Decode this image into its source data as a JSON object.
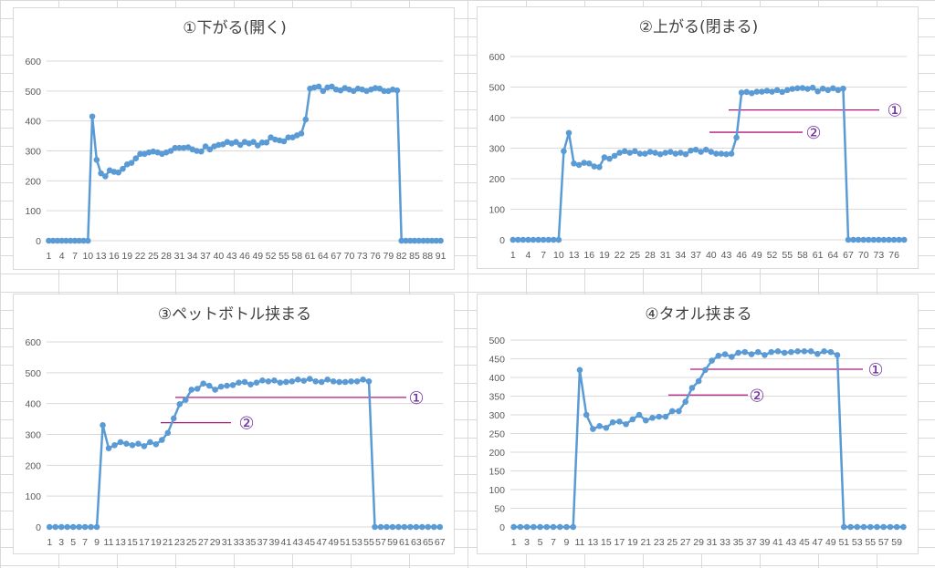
{
  "chart_data": [
    {
      "type": "line",
      "title": "①下がる(開く)",
      "ylim": [
        0,
        600
      ],
      "yticks": [
        0,
        100,
        200,
        300,
        400,
        500,
        600
      ],
      "x": [
        1,
        2,
        3,
        4,
        5,
        6,
        7,
        8,
        9,
        10,
        11,
        12,
        13,
        14,
        15,
        16,
        17,
        18,
        19,
        20,
        21,
        22,
        23,
        24,
        25,
        26,
        27,
        28,
        29,
        30,
        31,
        32,
        33,
        34,
        35,
        36,
        37,
        38,
        39,
        40,
        41,
        42,
        43,
        44,
        45,
        46,
        47,
        48,
        49,
        50,
        51,
        52,
        53,
        54,
        55,
        56,
        57,
        58,
        59,
        60,
        61,
        62,
        63,
        64,
        65,
        66,
        67,
        68,
        69,
        70,
        71,
        72,
        73,
        74,
        75,
        76,
        77,
        78,
        79,
        80,
        81,
        82,
        83,
        84,
        85,
        86,
        87,
        88,
        89,
        90,
        91
      ],
      "xtick_labels": [
        "1",
        "4",
        "7",
        "10",
        "13",
        "16",
        "19",
        "22",
        "25",
        "28",
        "31",
        "34",
        "37",
        "40",
        "43",
        "46",
        "49",
        "52",
        "55",
        "58",
        "61",
        "64",
        "67",
        "70",
        "73",
        "76",
        "79",
        "82",
        "85",
        "88",
        "91"
      ],
      "grid": true,
      "legend": "none",
      "series": [
        {
          "color": "#5b9bd5",
          "values": [
            0,
            0,
            0,
            0,
            0,
            0,
            0,
            0,
            0,
            0,
            415,
            270,
            225,
            215,
            235,
            230,
            228,
            240,
            255,
            260,
            275,
            290,
            290,
            295,
            298,
            295,
            290,
            295,
            300,
            310,
            310,
            310,
            312,
            305,
            300,
            298,
            315,
            305,
            315,
            320,
            322,
            330,
            325,
            330,
            320,
            330,
            325,
            330,
            318,
            328,
            328,
            345,
            338,
            335,
            332,
            345,
            345,
            352,
            358,
            405,
            508,
            512,
            515,
            500,
            512,
            515,
            505,
            502,
            510,
            505,
            500,
            508,
            505,
            500,
            505,
            510,
            508,
            500,
            500,
            505,
            502,
            0,
            0,
            0,
            0,
            0,
            0,
            0,
            0,
            0,
            0
          ]
        }
      ],
      "annotations": []
    },
    {
      "type": "line",
      "title": "②上がる(閉まる)",
      "ylim": [
        0,
        600
      ],
      "yticks": [
        0,
        100,
        200,
        300,
        400,
        500,
        600
      ],
      "x": [
        1,
        2,
        3,
        4,
        5,
        6,
        7,
        8,
        9,
        10,
        11,
        12,
        13,
        14,
        15,
        16,
        17,
        18,
        19,
        20,
        21,
        22,
        23,
        24,
        25,
        26,
        27,
        28,
        29,
        30,
        31,
        32,
        33,
        34,
        35,
        36,
        37,
        38,
        39,
        40,
        41,
        42,
        43,
        44,
        45,
        46,
        47,
        48,
        49,
        50,
        51,
        52,
        53,
        54,
        55,
        56,
        57,
        58,
        59,
        60,
        61,
        62,
        63,
        64,
        65,
        66,
        67,
        68,
        69,
        70,
        71,
        72,
        73,
        74,
        75,
        76,
        77,
        78
      ],
      "xtick_labels": [
        "1",
        "4",
        "7",
        "10",
        "13",
        "16",
        "19",
        "22",
        "25",
        "28",
        "31",
        "34",
        "37",
        "40",
        "43",
        "46",
        "49",
        "52",
        "55",
        "58",
        "61",
        "64",
        "67",
        "70",
        "73",
        "76"
      ],
      "grid": true,
      "legend": "none",
      "series": [
        {
          "color": "#5b9bd5",
          "values": [
            0,
            0,
            0,
            0,
            0,
            0,
            0,
            0,
            0,
            0,
            290,
            350,
            250,
            245,
            252,
            250,
            240,
            238,
            270,
            265,
            275,
            285,
            290,
            285,
            290,
            282,
            282,
            288,
            285,
            280,
            285,
            288,
            282,
            285,
            280,
            292,
            295,
            288,
            295,
            288,
            282,
            282,
            280,
            282,
            335,
            482,
            484,
            480,
            485,
            485,
            488,
            485,
            490,
            484,
            490,
            494,
            496,
            497,
            494,
            498,
            486,
            495,
            490,
            496,
            490,
            495,
            0,
            0,
            0,
            0,
            0,
            0,
            0,
            0,
            0,
            0,
            0,
            0
          ]
        }
      ],
      "annotations": [
        {
          "label": "①",
          "value": 425
        },
        {
          "label": "②",
          "value": 352
        }
      ]
    },
    {
      "type": "line",
      "title": "③ペットボトル挟まる",
      "ylim": [
        0,
        600
      ],
      "yticks": [
        0,
        100,
        200,
        300,
        400,
        500,
        600
      ],
      "x": [
        1,
        2,
        3,
        4,
        5,
        6,
        7,
        8,
        9,
        10,
        11,
        12,
        13,
        14,
        15,
        16,
        17,
        18,
        19,
        20,
        21,
        22,
        23,
        24,
        25,
        26,
        27,
        28,
        29,
        30,
        31,
        32,
        33,
        34,
        35,
        36,
        37,
        38,
        39,
        40,
        41,
        42,
        43,
        44,
        45,
        46,
        47,
        48,
        49,
        50,
        51,
        52,
        53,
        54,
        55,
        56,
        57,
        58,
        59,
        60,
        61,
        62,
        63,
        64,
        65,
        66,
        67
      ],
      "xtick_labels": [
        "1",
        "3",
        "5",
        "7",
        "9",
        "11",
        "13",
        "15",
        "17",
        "19",
        "21",
        "23",
        "25",
        "27",
        "29",
        "31",
        "33",
        "35",
        "37",
        "39",
        "41",
        "43",
        "45",
        "47",
        "49",
        "51",
        "53",
        "55",
        "57",
        "59",
        "61",
        "63",
        "65",
        "67"
      ],
      "grid": true,
      "legend": "none",
      "series": [
        {
          "color": "#5b9bd5",
          "values": [
            0,
            0,
            0,
            0,
            0,
            0,
            0,
            0,
            0,
            330,
            255,
            265,
            275,
            270,
            265,
            270,
            262,
            275,
            268,
            282,
            305,
            352,
            398,
            412,
            445,
            448,
            465,
            458,
            445,
            455,
            458,
            460,
            468,
            470,
            462,
            468,
            475,
            472,
            475,
            468,
            470,
            472,
            478,
            474,
            480,
            472,
            470,
            478,
            472,
            470,
            470,
            472,
            472,
            478,
            472,
            0,
            0,
            0,
            0,
            0,
            0,
            0,
            0,
            0,
            0,
            0,
            0
          ]
        }
      ],
      "annotations": [
        {
          "label": "①",
          "value": 420
        },
        {
          "label": "②",
          "value": 338
        }
      ]
    },
    {
      "type": "line",
      "title": "④タオル挟まる",
      "ylim": [
        0,
        500
      ],
      "yticks": [
        0,
        50,
        100,
        150,
        200,
        250,
        300,
        350,
        400,
        450,
        500
      ],
      "x": [
        1,
        2,
        3,
        4,
        5,
        6,
        7,
        8,
        9,
        10,
        11,
        12,
        13,
        14,
        15,
        16,
        17,
        18,
        19,
        20,
        21,
        22,
        23,
        24,
        25,
        26,
        27,
        28,
        29,
        30,
        31,
        32,
        33,
        34,
        35,
        36,
        37,
        38,
        39,
        40,
        41,
        42,
        43,
        44,
        45,
        46,
        47,
        48,
        49,
        50,
        51,
        52,
        53,
        54,
        55,
        56,
        57,
        58,
        59,
        60
      ],
      "xtick_labels": [
        "1",
        "3",
        "5",
        "7",
        "9",
        "11",
        "13",
        "15",
        "17",
        "19",
        "21",
        "23",
        "25",
        "27",
        "29",
        "31",
        "33",
        "35",
        "37",
        "39",
        "41",
        "43",
        "45",
        "47",
        "49",
        "51",
        "53",
        "55",
        "57",
        "59"
      ],
      "grid": true,
      "legend": "none",
      "series": [
        {
          "color": "#5b9bd5",
          "values": [
            0,
            0,
            0,
            0,
            0,
            0,
            0,
            0,
            0,
            0,
            420,
            300,
            262,
            270,
            265,
            280,
            282,
            275,
            288,
            300,
            285,
            292,
            295,
            295,
            310,
            310,
            335,
            372,
            390,
            420,
            445,
            458,
            462,
            455,
            466,
            468,
            462,
            468,
            460,
            468,
            470,
            466,
            468,
            470,
            470,
            470,
            463,
            470,
            468,
            460,
            0,
            0,
            0,
            0,
            0,
            0,
            0,
            0,
            0,
            0
          ]
        }
      ],
      "annotations": [
        {
          "label": "①",
          "value": 422
        },
        {
          "label": "②",
          "value": 353
        }
      ]
    }
  ]
}
